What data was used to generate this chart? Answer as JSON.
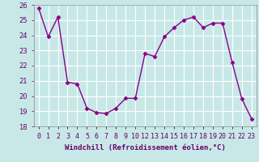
{
  "x_indices": [
    0,
    1,
    2,
    3,
    4,
    5,
    6,
    7,
    8,
    9,
    10,
    11,
    12,
    13,
    14,
    15,
    16,
    17,
    18,
    19,
    20,
    21,
    22
  ],
  "y": [
    25.8,
    23.9,
    25.2,
    20.9,
    20.8,
    19.2,
    18.9,
    18.85,
    19.2,
    19.85,
    19.85,
    22.8,
    22.6,
    23.9,
    24.5,
    25.0,
    25.2,
    24.5,
    24.8,
    24.8,
    22.2,
    19.8,
    18.5
  ],
  "xtick_labels": [
    "0",
    "1",
    "2",
    "3",
    "4",
    "5",
    "6",
    "7",
    "8",
    "9",
    "10",
    "12",
    "13",
    "14",
    "15",
    "16",
    "17",
    "18",
    "19",
    "20",
    "21",
    "22",
    "23"
  ],
  "line_color": "#880088",
  "marker_color": "#880088",
  "bg_color": "#c8e8e8",
  "grid_color": "#b0d8d8",
  "xlabel": "Windchill (Refroidissement éolien,°C)",
  "xlabel_color": "#660066",
  "tick_color": "#660066",
  "ylim": [
    18,
    26
  ],
  "yticks": [
    18,
    19,
    20,
    21,
    22,
    23,
    24,
    25,
    26
  ],
  "tick_fontsize": 6,
  "xlabel_fontsize": 6.5,
  "linewidth": 1.0,
  "marker_size": 2.5
}
